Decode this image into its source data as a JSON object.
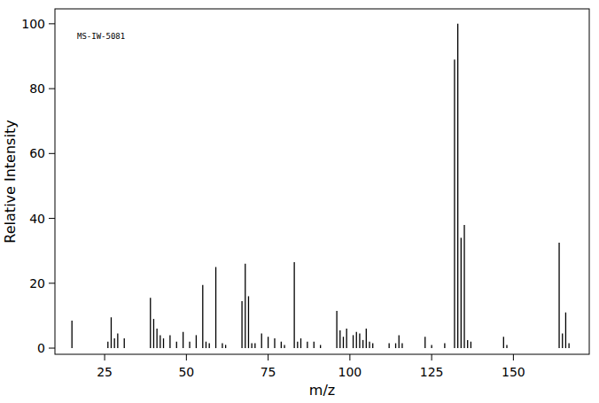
{
  "chart_data": {
    "type": "bar",
    "annotation": "MS-IW-5081",
    "x_label": "m/z",
    "y_label": "Relative Intensity",
    "x": [
      15,
      26,
      27,
      28,
      29,
      31,
      39,
      40,
      41,
      42,
      43,
      45,
      47,
      49,
      51,
      53,
      55,
      56,
      57,
      59,
      61,
      62,
      67,
      68,
      69,
      70,
      71,
      73,
      75,
      77,
      79,
      80,
      83,
      84,
      85,
      87,
      89,
      91,
      96,
      97,
      98,
      99,
      101,
      102,
      103,
      104,
      105,
      106,
      107,
      112,
      114,
      115,
      116,
      123,
      125,
      129,
      132,
      133,
      134,
      135,
      136,
      137,
      147,
      148,
      164,
      165,
      166,
      167
    ],
    "values": [
      8.5,
      2,
      9.5,
      3,
      4.5,
      3,
      15.5,
      9,
      6,
      4,
      3,
      4,
      2,
      5,
      2,
      4,
      19.5,
      2,
      1.5,
      25,
      1.5,
      1,
      14.5,
      26,
      16,
      1.5,
      1.5,
      4.5,
      3.5,
      3,
      2,
      1,
      26.5,
      2,
      3,
      2,
      2,
      1,
      11.5,
      5.5,
      3.5,
      6,
      4,
      5,
      4.5,
      2.5,
      6,
      2,
      1.5,
      1.5,
      1.5,
      4,
      1.5,
      3.5,
      1,
      1.5,
      89,
      100,
      34,
      38,
      2.5,
      2,
      3.5,
      1,
      32.5,
      4.5,
      11,
      1.5
    ],
    "color": "#000000",
    "xlim": [
      9.8,
      173.2
    ],
    "ylim": [
      -1.9,
      104.6
    ],
    "xticks": [
      25,
      50,
      75,
      100,
      125,
      150
    ],
    "yticks": [
      0,
      20,
      40,
      60,
      80,
      100
    ],
    "grid": false
  }
}
